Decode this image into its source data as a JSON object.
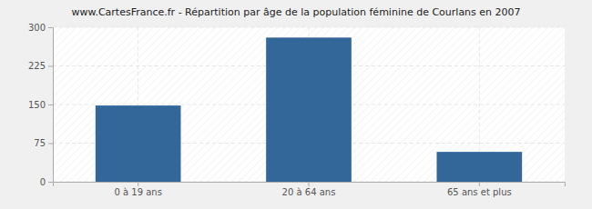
{
  "chart_data": {
    "type": "bar",
    "title": "www.CartesFrance.fr - Répartition par âge de la population féminine de Courlans en 2007",
    "categories": [
      "0 à 19 ans",
      "20 à 64 ans",
      "65 ans et plus"
    ],
    "values": [
      148,
      280,
      58
    ],
    "color": "#336699",
    "ylim": [
      0,
      300
    ],
    "yticks": [
      0,
      75,
      150,
      225,
      300
    ],
    "grid": true
  }
}
